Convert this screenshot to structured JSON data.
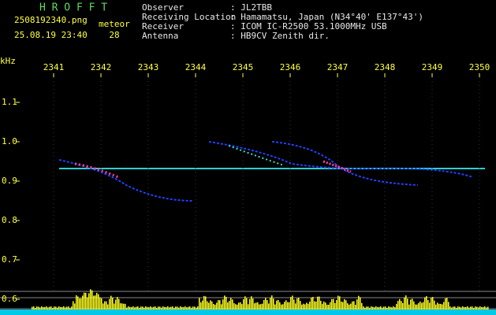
{
  "header": {
    "title": "H R O F F T",
    "filename": "2508192340.png",
    "datetime": "25.08.19 23:40",
    "count_label": "meteor",
    "count": 28,
    "fields": [
      {
        "label": "Observer",
        "value": ": JL2TBB"
      },
      {
        "label": "Receiving Location",
        "value": ": Hamamatsu, Japan (N34°40' E137°43')"
      },
      {
        "label": "Receiver",
        "value": ": ICOM IC-R2500 53.1000MHz USB"
      },
      {
        "label": "Antenna",
        "value": ": HB9CV Zenith dir."
      }
    ]
  },
  "axis": {
    "unit": "kHz",
    "xticks": [
      2341,
      2342,
      2343,
      2344,
      2345,
      2346,
      2347,
      2348,
      2349,
      2350
    ],
    "yticks": [
      1.1,
      {
        "value": 1,
        "label": "1.0"
      },
      0.9,
      0.8,
      0.7,
      0.6
    ]
  }
}
